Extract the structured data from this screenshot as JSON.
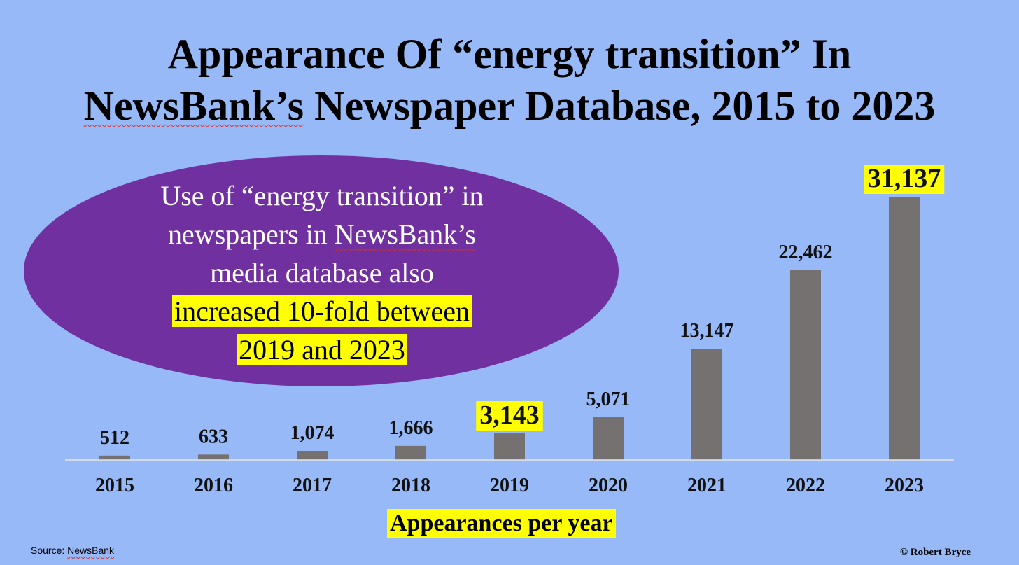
{
  "title": {
    "line1": "Appearance Of “energy transition” In",
    "line2_underlined": "NewsBank’s",
    "line2_rest": " Newspaper Database, 2015 to 2023"
  },
  "callout": {
    "line1": "Use of “energy transition” in",
    "line2_pre": "newspapers in ",
    "line2_underlined": "NewsBank’s",
    "line3": "media database also",
    "line4": "increased 10-fold between",
    "line5": "2019 and 2023",
    "fill_color": "#7030a0"
  },
  "chart_data": {
    "type": "bar",
    "categories": [
      "2015",
      "2016",
      "2017",
      "2018",
      "2019",
      "2020",
      "2021",
      "2022",
      "2023"
    ],
    "values": [
      512,
      633,
      1074,
      1666,
      3143,
      5071,
      13147,
      22462,
      31137
    ],
    "data_labels": [
      "512",
      "633",
      "1,074",
      "1,666",
      "3,143",
      "5,071",
      "13,147",
      "22,462",
      "31,137"
    ],
    "highlighted": [
      "2019",
      "2023"
    ],
    "title": "Appearance Of “energy transition” In NewsBank’s Newspaper Database, 2015 to 2023",
    "xlabel": "Appearances per year",
    "ylabel": "",
    "ylim": [
      0,
      32000
    ],
    "grid": false,
    "legend": "none",
    "bar_color": "#767171",
    "highlight_color": "#ffff00"
  },
  "source_prefix": "Source: ",
  "source_name": "NewsBank",
  "copyright": "© Robert Bryce"
}
